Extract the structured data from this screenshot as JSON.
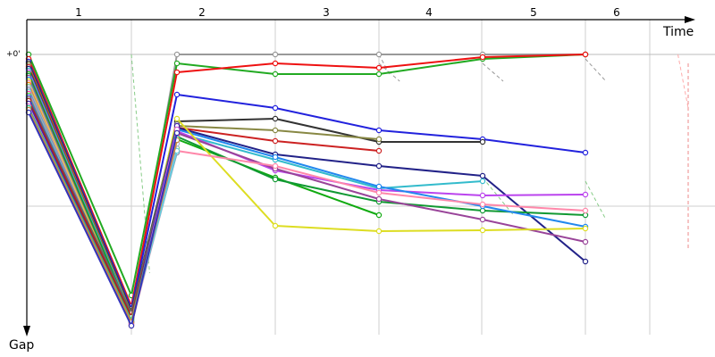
{
  "chart_data": {
    "type": "line",
    "xlabel": "Time",
    "ylabel": "Gap",
    "ytick_label": "+0'",
    "laps": [
      "1",
      "2",
      "3",
      "4",
      "5",
      "6"
    ],
    "grid": true,
    "series": [
      {
        "color": "#999999",
        "values": [
          0,
          290,
          0,
          0,
          0,
          0,
          0
        ]
      },
      {
        "color": "#22aa22",
        "values": [
          0,
          270,
          10,
          22,
          22,
          5,
          0
        ]
      },
      {
        "color": "#ee1111",
        "values": [
          5,
          282,
          20,
          10,
          15,
          3,
          0
        ]
      },
      {
        "color": "#2222dd",
        "values": [
          8,
          285,
          45,
          60,
          85,
          95,
          110
        ]
      },
      {
        "color": "#333333",
        "values": [
          10,
          288,
          75,
          72,
          98,
          98
        ]
      },
      {
        "color": "#888844",
        "values": [
          12,
          290,
          80,
          85,
          95
        ]
      },
      {
        "color": "#cc2222",
        "values": [
          14,
          292,
          82,
          97,
          108
        ]
      },
      {
        "color": "#222288",
        "values": [
          16,
          295,
          82,
          112,
          125,
          136,
          232
        ]
      },
      {
        "color": "#33bbcc",
        "values": [
          18,
          292,
          88,
          118,
          150,
          142
        ]
      },
      {
        "color": "#bb44ee",
        "values": [
          20,
          296,
          86,
          130,
          152,
          158,
          157
        ]
      },
      {
        "color": "#11aa11",
        "values": [
          22,
          294,
          95,
          138,
          180
        ]
      },
      {
        "color": "#119933",
        "values": [
          24,
          296,
          92,
          140,
          165,
          175,
          180
        ]
      },
      {
        "color": "#994499",
        "values": [
          26,
          298,
          88,
          128,
          162,
          185,
          210
        ]
      },
      {
        "color": "#2288ee",
        "values": [
          28,
          300,
          84,
          115,
          148,
          170,
          193
        ]
      },
      {
        "color": "#dddd22",
        "values": [
          30,
          298,
          72,
          192,
          198,
          197,
          195
        ]
      },
      {
        "color": "#ff88aa",
        "values": [
          32,
          302,
          108,
          125,
          155,
          168,
          175
        ]
      },
      {
        "color": "#ff8800",
        "values": [
          34,
          304,
          90
        ]
      },
      {
        "color": "#88cc88",
        "values": [
          36,
          300,
          105
        ]
      },
      {
        "color": "#aaaadd",
        "values": [
          38,
          298,
          100
        ]
      },
      {
        "color": "#8888aa",
        "values": [
          40,
          296,
          110
        ]
      },
      {
        "color": "#66ccdd",
        "values": [
          42,
          300,
          108
        ]
      },
      {
        "color": "#ff44aa",
        "values": [
          44,
          302,
          92
        ]
      },
      {
        "color": "#44dd44",
        "values": [
          46,
          296,
          96
        ]
      },
      {
        "color": "#4444ff",
        "values": [
          48,
          292,
          85
        ]
      },
      {
        "color": "#666666",
        "values": [
          50,
          290,
          78
        ]
      },
      {
        "color": "#aa2222",
        "values": [
          52,
          294,
          86
        ]
      },
      {
        "color": "#4422aa",
        "values": [
          55,
          300,
          80
        ]
      },
      {
        "color": "#dd66dd",
        "values": [
          58,
          302,
          84
        ]
      },
      {
        "color": "#22cc88",
        "values": [
          60,
          298,
          94
        ]
      },
      {
        "color": "#cc8844",
        "values": [
          62,
          300,
          96
        ]
      },
      {
        "color": "#3333bb",
        "values": [
          65,
          304,
          88
        ]
      }
    ],
    "pit_series": [
      {
        "color": "#88cc88",
        "points": [
          [
            1,
            0
          ],
          [
            1.4,
            245
          ]
        ]
      },
      {
        "color": "#999999",
        "points": [
          [
            4,
            0
          ],
          [
            4.1,
            22
          ]
        ]
      },
      {
        "color": "#999999",
        "points": [
          [
            4,
            10
          ],
          [
            4.2,
            30
          ]
        ]
      },
      {
        "color": "#999999",
        "points": [
          [
            5,
            10
          ],
          [
            5.2,
            30
          ]
        ]
      },
      {
        "color": "#999999",
        "points": [
          [
            6,
            5
          ],
          [
            6.2,
            30
          ]
        ]
      },
      {
        "color": "#88cc88",
        "points": [
          [
            5,
            138
          ],
          [
            5.3,
            180
          ]
        ]
      },
      {
        "color": "#88cc88",
        "points": [
          [
            6,
            142
          ],
          [
            6.2,
            185
          ]
        ]
      },
      {
        "color": "#ee8888",
        "points": [
          [
            7,
            10
          ],
          [
            7.6,
            220
          ]
        ]
      },
      {
        "color": "#ffaaaa",
        "points": [
          [
            6.9,
            0
          ],
          [
            7.6,
            60
          ]
        ]
      }
    ]
  }
}
